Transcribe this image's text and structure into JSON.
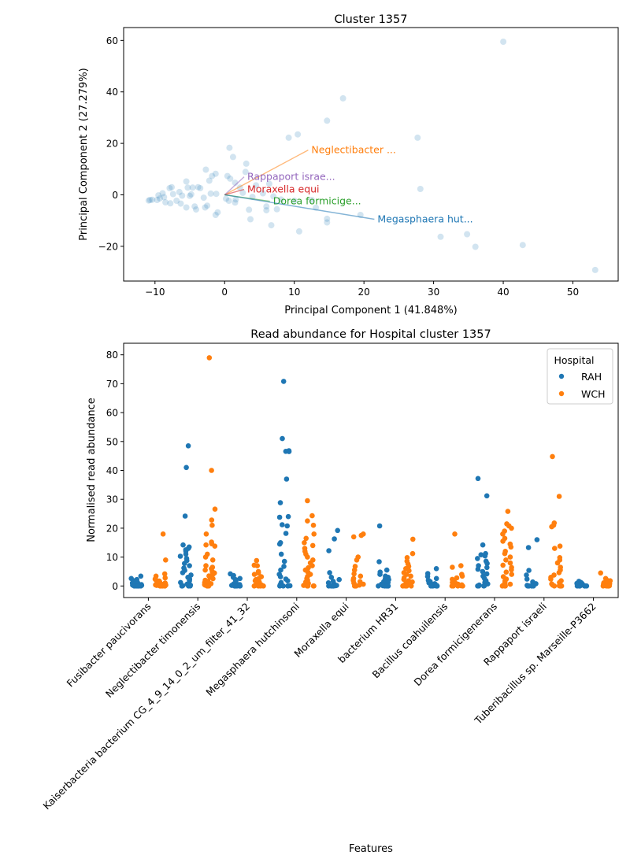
{
  "chart_data": [
    {
      "type": "scatter",
      "title": "Cluster 1357",
      "xlabel": "Principal Component 1 (41.848%)",
      "ylabel": "Principal Component 2 (27.279%)",
      "xlim": [
        -14.5,
        56.5
      ],
      "ylim": [
        -33.5,
        65
      ],
      "xticks": [
        -10,
        0,
        10,
        20,
        30,
        40,
        50
      ],
      "yticks": [
        -20,
        0,
        20,
        40,
        60
      ],
      "grid": false,
      "point_color": "#1f77b4",
      "points": [
        [
          40.0,
          59.5
        ],
        [
          17.0,
          37.5
        ],
        [
          14.7,
          28.8
        ],
        [
          10.5,
          23.5
        ],
        [
          9.2,
          22.2
        ],
        [
          27.7,
          22.2
        ],
        [
          0.7,
          18.3
        ],
        [
          1.2,
          14.7
        ],
        [
          3.1,
          12.1
        ],
        [
          28.1,
          2.3
        ],
        [
          31.0,
          -16.3
        ],
        [
          34.8,
          -15.3
        ],
        [
          36.0,
          -20.2
        ],
        [
          42.8,
          -19.5
        ],
        [
          53.2,
          -29.2
        ],
        [
          19.5,
          -7.8
        ],
        [
          14.7,
          -9.3
        ],
        [
          14.7,
          -10.7
        ],
        [
          10.7,
          -14.2
        ],
        [
          6.7,
          -11.8
        ],
        [
          3.7,
          -9.5
        ],
        [
          7.5,
          -5.6
        ],
        [
          6.0,
          -6.0
        ],
        [
          -2.7,
          9.8
        ],
        [
          -1.3,
          8.2
        ],
        [
          -2.2,
          5.5
        ],
        [
          -5.5,
          5.2
        ],
        [
          -7.9,
          2.6
        ],
        [
          -9.7,
          -2.0
        ],
        [
          -10.7,
          -2.0
        ],
        [
          -10.9,
          -2.2
        ],
        [
          -10.4,
          -1.9
        ],
        [
          -9.3,
          -1.4
        ],
        [
          -8.7,
          -0.9
        ],
        [
          -7.4,
          0.3
        ],
        [
          -6.5,
          1.1
        ],
        [
          -6.1,
          -0.3
        ],
        [
          -4.8,
          0.2
        ],
        [
          -4.6,
          2.8
        ],
        [
          -3.5,
          2.6
        ],
        [
          -3.0,
          -1.1
        ],
        [
          -1.8,
          7.3
        ],
        [
          0.4,
          7.3
        ],
        [
          0.8,
          6.3
        ],
        [
          1.5,
          4.7
        ],
        [
          2.2,
          2.8
        ],
        [
          3.0,
          8.9
        ],
        [
          4.5,
          3.7
        ],
        [
          -7.8,
          -3.3
        ],
        [
          -6.3,
          -3.4
        ],
        [
          -5.5,
          -4.9
        ],
        [
          -4.3,
          -4.5
        ],
        [
          -4.1,
          -5.7
        ],
        [
          -2.5,
          -4.2
        ],
        [
          -1.0,
          -6.8
        ],
        [
          -1.3,
          -7.8
        ],
        [
          0.6,
          -2.3
        ],
        [
          1.5,
          -3.0
        ],
        [
          3.5,
          -5.8
        ],
        [
          6.0,
          -4.5
        ],
        [
          10.0,
          -2.3
        ],
        [
          12.5,
          -2.0
        ],
        [
          13.1,
          -5.0
        ],
        [
          -8.9,
          0.6
        ],
        [
          -9.5,
          -0.2
        ],
        [
          -7.6,
          3.0
        ],
        [
          -6.9,
          -2.3
        ],
        [
          -8.5,
          -2.9
        ],
        [
          -5.0,
          -0.4
        ],
        [
          -3.8,
          3.0
        ],
        [
          -2.0,
          0.5
        ],
        [
          0.2,
          -1.5
        ],
        [
          4.0,
          -0.8
        ],
        [
          5.5,
          0.6
        ],
        [
          8.1,
          -1.8
        ],
        [
          -2.8,
          -4.9
        ],
        [
          -5.3,
          2.8
        ],
        [
          -1.2,
          0.4
        ],
        [
          1.6,
          -1.8
        ],
        [
          2.6,
          0.8
        ],
        [
          7.0,
          -0.6
        ],
        [
          6.4,
          4.3
        ]
      ],
      "loadings": [
        {
          "label": "Neglectibacter ...",
          "color": "#ff7f0e",
          "x": 12.0,
          "y": 17.4
        },
        {
          "label": "Rappaport israe...",
          "color": "#9467bd",
          "x": 2.8,
          "y": 7.0
        },
        {
          "label": "Moraxella equi",
          "color": "#d62728",
          "x": 2.8,
          "y": 2.1
        },
        {
          "label": "Dorea formicige...",
          "color": "#2ca02c",
          "x": 6.5,
          "y": -2.5
        },
        {
          "label": "Megasphaera hut...",
          "color": "#1f77b4",
          "x": 21.5,
          "y": -9.5
        }
      ]
    },
    {
      "type": "scatter",
      "subtype": "strip",
      "title": "Read abundance for Hospital cluster 1357",
      "xlabel": "Features",
      "ylabel": "Normalised read abundance",
      "ylim": [
        -4,
        84
      ],
      "yticks": [
        0,
        10,
        20,
        30,
        40,
        50,
        60,
        70,
        80
      ],
      "grid": false,
      "categories": [
        "Fusibacter paucivorans",
        "Neglectibacter timonensis",
        "Kaiserbacteria bacterium CG_4_9_14_0_2_um_filter_41_32",
        "Megasphaera hutchinsoni",
        "Moraxella equi",
        "bacterium HR31",
        "Bacillus coahuilensis",
        "Dorea formicigenerans",
        "Rappaport israeli",
        "Tuberibacillus sp. Marseille-P3662"
      ],
      "legend": {
        "title": "Hospital",
        "position": "top-right"
      },
      "series": [
        {
          "name": "RAH",
          "color": "#1f77b4",
          "values": [
            [
              3.4,
              2.6,
              2.2,
              1.8,
              1.5,
              1.2,
              1.0,
              0.8,
              0.6,
              0.5,
              0.4,
              0.3,
              0.2,
              0.1,
              0.1,
              0.0,
              0.0,
              0.0,
              0.0,
              0.0,
              0.0,
              0.0
            ],
            [
              48.5,
              41.0,
              24.2,
              14.2,
              13.5,
              13.0,
              12.5,
              12.0,
              11.0,
              10.3,
              9.5,
              8.8,
              7.8,
              7.0,
              6.2,
              5.4,
              4.6,
              3.8,
              3.0,
              2.4,
              1.8,
              1.2,
              0.6,
              0.3,
              0.1,
              0.0,
              0.0,
              0.0,
              0.0
            ],
            [
              4.2,
              3.6,
              3.0,
              2.6,
              2.2,
              1.8,
              1.5,
              1.2,
              0.9,
              0.7,
              0.5,
              0.3,
              0.2,
              0.1,
              0.0,
              0.0,
              0.0,
              0.0,
              0.0,
              0.0
            ],
            [
              70.8,
              51.0,
              46.8,
              46.6,
              46.5,
              37.0,
              28.8,
              24.0,
              23.8,
              21.2,
              20.8,
              18.2,
              15.0,
              14.5,
              11.0,
              8.5,
              6.8,
              5.5,
              4.0,
              3.2,
              2.4,
              1.8,
              1.2,
              0.8,
              0.4,
              0.1,
              0.0,
              0.0,
              0.0
            ],
            [
              19.2,
              16.3,
              12.2,
              4.6,
              3.0,
              2.2,
              1.6,
              1.1,
              0.7,
              0.4,
              0.2,
              0.1,
              0.0,
              0.0,
              0.0,
              0.0,
              0.0
            ],
            [
              20.8,
              8.4,
              5.5,
              4.8,
              4.0,
              3.4,
              3.0,
              2.6,
              2.2,
              1.8,
              1.5,
              1.2,
              0.9,
              0.6,
              0.4,
              0.2,
              0.1,
              0.0,
              0.0,
              0.0,
              0.0,
              0.0
            ],
            [
              6.0,
              4.3,
              3.3,
              2.6,
              2.0,
              1.5,
              1.1,
              0.8,
              0.5,
              0.3,
              0.2,
              0.1,
              0.0,
              0.0,
              0.0,
              0.0,
              0.0
            ],
            [
              37.2,
              31.2,
              14.2,
              11.2,
              10.8,
              10.4,
              9.5,
              8.6,
              7.8,
              7.0,
              6.4,
              5.8,
              5.0,
              4.2,
              3.4,
              2.6,
              1.8,
              1.2,
              0.7,
              0.3,
              0.1,
              0.0,
              0.0,
              0.0
            ],
            [
              16.0,
              13.3,
              5.4,
              3.8,
              2.4,
              1.4,
              0.8,
              0.4,
              0.2,
              0.1,
              0.0,
              0.0,
              0.0,
              0.0,
              0.0,
              0.0
            ],
            [
              1.6,
              1.3,
              1.1,
              0.9,
              0.7,
              0.5,
              0.4,
              0.3,
              0.2,
              0.1,
              0.1,
              0.0,
              0.0,
              0.0,
              0.0,
              0.0,
              0.0
            ]
          ]
        },
        {
          "name": "WCH",
          "color": "#ff7f0e",
          "values": [
            [
              18.0,
              9.0,
              4.2,
              3.4,
              2.8,
              2.4,
              2.0,
              1.7,
              1.4,
              1.2,
              1.0,
              0.8,
              0.6,
              0.5,
              0.4,
              0.3,
              0.2,
              0.1,
              0.1,
              0.0,
              0.0,
              0.0,
              0.0,
              0.0
            ],
            [
              79.0,
              40.0,
              26.6,
              22.8,
              21.0,
              18.0,
              15.2,
              14.6,
              14.2,
              13.8,
              11.0,
              10.0,
              9.0,
              7.0,
              6.5,
              6.0,
              5.5,
              5.0,
              4.5,
              4.0,
              3.5,
              3.0,
              2.5,
              2.0,
              1.6,
              1.2,
              0.8,
              0.5,
              0.3,
              0.1,
              0.0,
              0.0,
              0.0
            ],
            [
              8.8,
              7.2,
              7.0,
              5.0,
              4.5,
              4.0,
              3.2,
              2.6,
              2.2,
              1.8,
              1.4,
              1.0,
              0.7,
              0.4,
              0.2,
              0.1,
              0.0,
              0.0,
              0.0,
              0.0
            ],
            [
              29.5,
              24.3,
              22.5,
              21.0,
              18.0,
              16.5,
              15.0,
              14.0,
              13.0,
              12.0,
              11.0,
              10.0,
              9.0,
              8.0,
              7.0,
              6.3,
              5.5,
              4.8,
              4.0,
              3.3,
              2.6,
              2.0,
              1.4,
              0.9,
              0.5,
              0.2,
              0.0,
              0.0,
              0.0,
              0.0
            ],
            [
              18.0,
              17.5,
              17.0,
              10.0,
              9.0,
              6.8,
              5.5,
              4.2,
              3.4,
              2.6,
              2.0,
              1.5,
              1.0,
              0.6,
              0.3,
              0.1,
              0.0,
              0.0,
              0.0,
              0.0
            ],
            [
              16.2,
              11.2,
              9.8,
              8.6,
              7.6,
              6.8,
              6.0,
              5.3,
              4.6,
              4.0,
              3.4,
              2.8,
              2.3,
              1.8,
              1.4,
              1.0,
              0.7,
              0.4,
              0.2,
              0.1,
              0.0,
              0.0,
              0.0,
              0.0
            ],
            [
              18.0,
              7.0,
              6.5,
              4.0,
              3.4,
              2.8,
              2.3,
              1.9,
              1.5,
              1.2,
              0.9,
              0.6,
              0.4,
              0.2,
              0.1,
              0.0,
              0.0,
              0.0,
              0.0
            ],
            [
              25.8,
              21.5,
              20.8,
              20.0,
              19.0,
              18.0,
              16.5,
              15.5,
              14.5,
              13.5,
              12.0,
              11.2,
              10.0,
              9.0,
              8.0,
              7.2,
              6.4,
              5.6,
              4.8,
              4.0,
              3.2,
              2.4,
              1.7,
              1.1,
              0.6,
              0.2,
              0.0,
              0.0,
              0.0
            ],
            [
              44.8,
              31.0,
              21.8,
              21.0,
              20.5,
              13.8,
              13.0,
              9.8,
              9.0,
              8.0,
              6.5,
              5.5,
              4.6,
              3.8,
              3.0,
              2.4,
              1.8,
              1.2,
              0.7,
              0.3,
              0.1,
              0.0,
              0.0,
              0.0,
              0.0
            ],
            [
              4.5,
              2.6,
              2.2,
              1.8,
              1.4,
              1.1,
              0.8,
              0.6,
              0.4,
              0.2,
              0.1,
              0.0,
              0.0,
              0.0,
              0.0,
              0.0
            ]
          ]
        }
      ]
    }
  ]
}
